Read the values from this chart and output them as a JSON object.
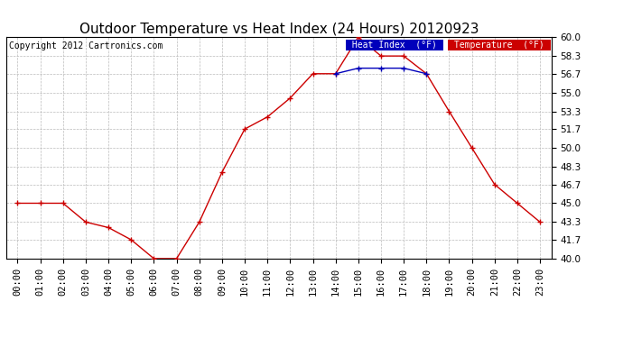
{
  "title": "Outdoor Temperature vs Heat Index (24 Hours) 20120923",
  "copyright": "Copyright 2012 Cartronics.com",
  "ylim": [
    40.0,
    60.0
  ],
  "yticks": [
    40.0,
    41.7,
    43.3,
    45.0,
    46.7,
    48.3,
    50.0,
    51.7,
    53.3,
    55.0,
    56.7,
    58.3,
    60.0
  ],
  "hours": [
    "00:00",
    "01:00",
    "02:00",
    "03:00",
    "04:00",
    "05:00",
    "06:00",
    "07:00",
    "08:00",
    "09:00",
    "10:00",
    "11:00",
    "12:00",
    "13:00",
    "14:00",
    "15:00",
    "16:00",
    "17:00",
    "18:00",
    "19:00",
    "20:00",
    "21:00",
    "22:00",
    "23:00"
  ],
  "temperature": [
    45.0,
    45.0,
    45.0,
    43.3,
    42.8,
    41.7,
    40.0,
    40.0,
    43.3,
    47.8,
    51.7,
    52.8,
    54.5,
    56.7,
    56.7,
    60.0,
    58.3,
    58.3,
    56.7,
    53.3,
    50.0,
    46.7,
    45.0,
    43.3
  ],
  "heat_index": [
    null,
    null,
    null,
    null,
    null,
    null,
    null,
    null,
    null,
    null,
    null,
    null,
    null,
    null,
    56.7,
    57.2,
    57.2,
    57.2,
    56.7,
    null,
    null,
    null,
    null,
    null
  ],
  "temp_color": "#cc0000",
  "heat_color": "#0000bb",
  "bg_color": "#ffffff",
  "grid_color": "#bbbbbb",
  "title_fontsize": 11,
  "tick_fontsize": 7.5,
  "copyright_fontsize": 7,
  "legend_heat_bg": "#0000bb",
  "legend_temp_bg": "#cc0000",
  "legend_heat_text": "Heat Index  (°F)",
  "legend_temp_text": "Temperature  (°F)"
}
